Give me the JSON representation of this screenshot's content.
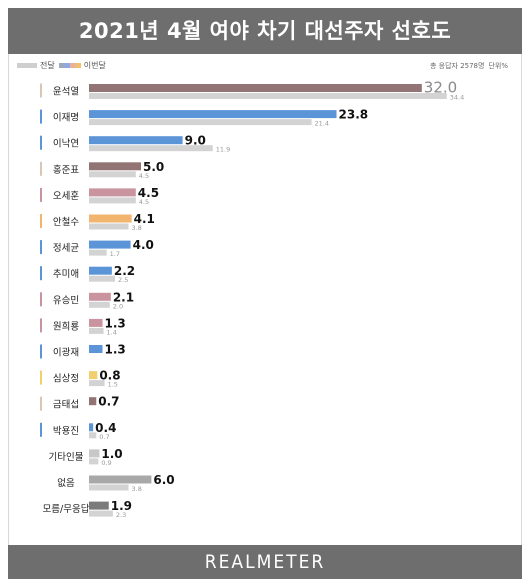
{
  "header": {
    "title": "2021년 4월 여야 차기 대선주자 선호도"
  },
  "legend": {
    "previous_label": "전달",
    "current_label": "이번달"
  },
  "note": {
    "sample": "총 응답자 2578명",
    "unit": "단위%"
  },
  "footer": {
    "brand": "REALMETER"
  },
  "chart_data": {
    "type": "bar",
    "orientation": "horizontal",
    "title": "2021년 4월 여야 차기 대선주자 선호도",
    "categories": [
      "윤석열",
      "이재명",
      "이낙연",
      "홍준표",
      "오세훈",
      "안철수",
      "정세균",
      "추미애",
      "유승민",
      "원희룡",
      "이광재",
      "심상정",
      "금태섭",
      "박용진",
      "기타인물",
      "없음",
      "모름/무응답"
    ],
    "series": [
      {
        "name": "이번달",
        "values": [
          32.0,
          23.8,
          9.0,
          5.0,
          4.5,
          4.1,
          4.0,
          2.2,
          2.1,
          1.3,
          1.3,
          0.8,
          0.7,
          0.4,
          1.0,
          6.0,
          1.9
        ],
        "labels": [
          "32.0",
          "23.8",
          "9.0",
          "5.0",
          "4.5",
          "4.1",
          "4.0",
          "2.2",
          "2.1",
          "1.3",
          "1.3",
          "0.8",
          "0.7",
          "0.4",
          "1.0",
          "6.0",
          "1.9"
        ]
      },
      {
        "name": "전달",
        "values": [
          34.4,
          21.4,
          11.9,
          4.5,
          4.5,
          3.8,
          1.7,
          2.5,
          2.0,
          1.4,
          null,
          1.5,
          null,
          0.7,
          0.9,
          3.8,
          2.3
        ],
        "labels": [
          "34.4",
          "21.4",
          "11.9",
          "4.5",
          "4.5",
          "3.8",
          "1.7",
          "2.5",
          "2.0",
          "1.4",
          "",
          "1.5",
          "",
          "0.7",
          "0.9",
          "3.8",
          "2.3"
        ]
      }
    ],
    "colors": {
      "current": [
        "#937474",
        "#5b95d8",
        "#5b95d8",
        "#937474",
        "#c994a0",
        "#f2b56f",
        "#5b95d8",
        "#5b95d8",
        "#c994a0",
        "#c994a0",
        "#5b95d8",
        "#f2cf6e",
        "#937474",
        "#5b95d8",
        "#c8c8c8",
        "#a8a8a8",
        "#7b7b7b"
      ],
      "marker": [
        "#d9c6b6",
        "#5b95d8",
        "#5b95d8",
        "#d9c6b6",
        "#c994a0",
        "#f2b56f",
        "#5b95d8",
        "#5b95d8",
        "#c994a0",
        "#c994a0",
        "#5b95d8",
        "#f2cf6e",
        "#d9c6b6",
        "#5b95d8",
        "",
        "",
        ""
      ],
      "previous": "#d3d3d3",
      "value_first": "#8a8a8a",
      "value": "#111111"
    },
    "xlim": [
      0,
      35
    ],
    "grid": false,
    "legend_position": "top-left"
  }
}
